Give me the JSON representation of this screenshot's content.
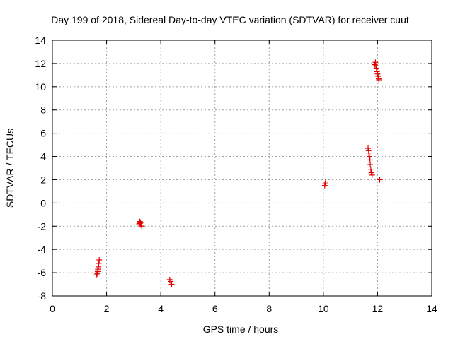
{
  "colors": {
    "marker": "#e00000",
    "grid": "#a0a0a0",
    "axis": "#000000",
    "background": "#ffffff"
  },
  "chart_data": {
    "type": "scatter",
    "title": "Day 199 of 2018, Sidereal Day-to-day VTEC variation (SDTVAR) for receiver cuut",
    "xlabel": "GPS time / hours",
    "ylabel": "SDTVAR / TECUs",
    "xlim": [
      0,
      14
    ],
    "ylim": [
      -8,
      14
    ],
    "xticks": [
      0,
      2,
      4,
      6,
      8,
      10,
      12,
      14
    ],
    "yticks": [
      -8,
      -6,
      -4,
      -2,
      0,
      2,
      4,
      6,
      8,
      10,
      12,
      14
    ],
    "grid": true,
    "marker": "+",
    "series": [
      {
        "name": "SDTVAR",
        "points": [
          [
            1.62,
            -6.2
          ],
          [
            1.65,
            -6.1
          ],
          [
            1.67,
            -5.9
          ],
          [
            1.68,
            -5.7
          ],
          [
            1.7,
            -5.5
          ],
          [
            1.71,
            -5.2
          ],
          [
            1.73,
            -4.9
          ],
          [
            3.2,
            -1.8
          ],
          [
            3.23,
            -1.6
          ],
          [
            3.25,
            -1.7
          ],
          [
            3.27,
            -1.9
          ],
          [
            3.3,
            -2.0
          ],
          [
            3.24,
            -1.75
          ],
          [
            4.33,
            -6.6
          ],
          [
            4.37,
            -6.75
          ],
          [
            4.4,
            -7.0
          ],
          [
            10.05,
            1.5
          ],
          [
            10.07,
            1.65
          ],
          [
            10.08,
            1.8
          ],
          [
            11.65,
            4.7
          ],
          [
            11.67,
            4.5
          ],
          [
            11.68,
            4.3
          ],
          [
            11.7,
            4.0
          ],
          [
            11.72,
            3.7
          ],
          [
            11.73,
            3.3
          ],
          [
            11.75,
            2.9
          ],
          [
            11.77,
            2.6
          ],
          [
            11.8,
            2.4
          ],
          [
            12.08,
            2.0
          ],
          [
            11.9,
            11.9
          ],
          [
            11.92,
            12.1
          ],
          [
            11.94,
            11.8
          ],
          [
            11.96,
            11.6
          ],
          [
            11.98,
            11.3
          ],
          [
            12.0,
            11.1
          ],
          [
            12.02,
            10.9
          ],
          [
            12.04,
            10.7
          ],
          [
            12.05,
            10.6
          ]
        ]
      }
    ]
  }
}
